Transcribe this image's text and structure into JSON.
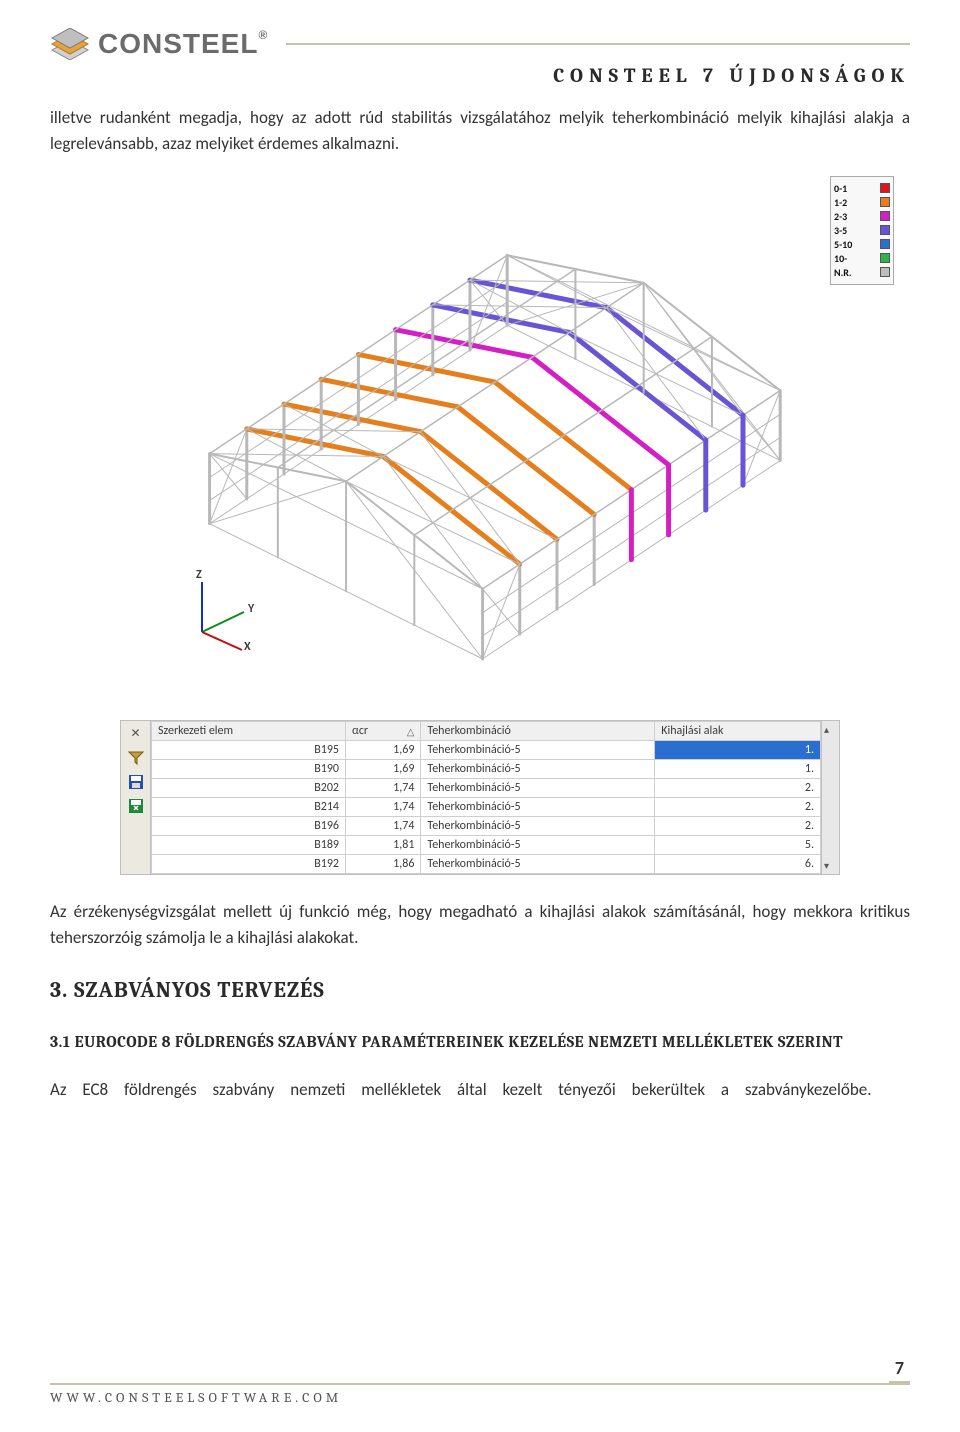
{
  "header": {
    "logo_text": "CONSTEEL",
    "doc_title": "CONSTEEL 7 ÚJDONSÁGOK"
  },
  "para1": "illetve rudanként megadja, hogy az adott rúd stabilitás vizsgálatához melyik teherkombináció melyik kihajlási alakja a legrelevánsabb, azaz melyiket érdemes alkalmazni.",
  "legend": {
    "items": [
      {
        "label": "0-1",
        "color": "#e2131a"
      },
      {
        "label": "1-2",
        "color": "#e57f1c"
      },
      {
        "label": "2-3",
        "color": "#d41fc4"
      },
      {
        "label": "3-5",
        "color": "#6b54d4"
      },
      {
        "label": "5-10",
        "color": "#2a6fcf"
      },
      {
        "label": "10-",
        "color": "#2fb24a"
      },
      {
        "label": "N.R.",
        "color": "#bdbdbd"
      }
    ]
  },
  "axes": {
    "x": "X",
    "y": "Y",
    "z": "Z",
    "z_color": "#1030c0",
    "y_color": "#108a20",
    "x_color": "#c01010"
  },
  "model": {
    "gray": "#b8b8b8",
    "frame_colors": [
      "#e57f1c",
      "#e57f1c",
      "#e57f1c",
      "#e57f1c",
      "#d41fc4",
      "#6b54d4",
      "#6b54d4",
      "#b8b8b8"
    ],
    "highlight1": "#d41fc4",
    "highlight2": "#6b54d4"
  },
  "table": {
    "columns": [
      "Szerkezeti elem",
      "αcr",
      "Teherkombináció",
      "Kihajlási alak"
    ],
    "sort_col": 1,
    "rows": [
      [
        "B195",
        "1,69",
        "Teherkombináció-5",
        "1."
      ],
      [
        "B190",
        "1,69",
        "Teherkombináció-5",
        "1."
      ],
      [
        "B202",
        "1,74",
        "Teherkombináció-5",
        "2."
      ],
      [
        "B214",
        "1,74",
        "Teherkombináció-5",
        "2."
      ],
      [
        "B196",
        "1,74",
        "Teherkombináció-5",
        "2."
      ],
      [
        "B189",
        "1,81",
        "Teherkombináció-5",
        "5."
      ],
      [
        "B192",
        "1,86",
        "Teherkombináció-5",
        "6."
      ]
    ],
    "selected_row": 0,
    "selected_col": 3
  },
  "para2": "Az érzékenységvizsgálat mellett új funkció még, hogy megadható a kihajlási alakok számításánál, hogy mekkora kritikus teherszorzóig számolja le a kihajlási alakokat.",
  "section3": {
    "title": "3. SZABVÁNYOS TERVEZÉS"
  },
  "section31": {
    "title": "3.1 EUROCODE 8 FÖLDRENGÉS SZABVÁNY PARAMÉTEREINEK KEZELÉSE NEMZETI MELLÉKLETEK SZERINT"
  },
  "para3": "Az EC8 földrengés szabvány nemzeti mellékletek által kezelt tényezői bekerültek a szabványkezelőbe.",
  "footer": {
    "url": "WWW.CONSTEELSOFTWARE.COM",
    "page": "7"
  }
}
